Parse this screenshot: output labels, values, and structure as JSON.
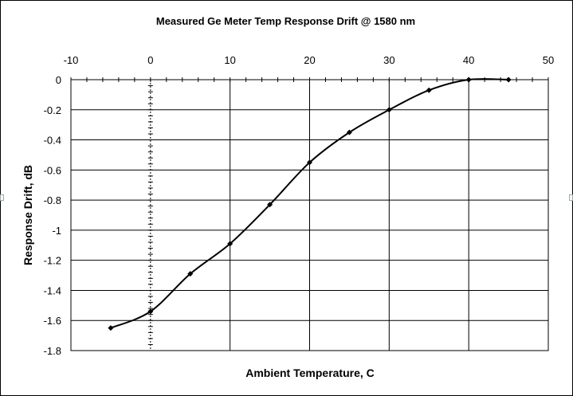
{
  "chart_data": {
    "type": "line",
    "title": "Measured Ge Meter Temp Response Drift @ 1580 nm",
    "xlabel": "Ambient Temperature, C",
    "ylabel": "Response Drift, dB",
    "xlim": [
      -10,
      50
    ],
    "ylim": [
      -1.8,
      0
    ],
    "x_ticks": [
      "-10",
      "0",
      "10",
      "20",
      "30",
      "40",
      "50"
    ],
    "y_ticks": [
      "0",
      "-0.2",
      "-0.4",
      "-0.6",
      "-0.8",
      "-1",
      "-1.2",
      "-1.4",
      "-1.6",
      "-1.8"
    ],
    "x_axis_position": "top",
    "grid": true,
    "legend": "none",
    "line_color": "#000000",
    "series": [
      {
        "x": [
          -5,
          0,
          5,
          10,
          15,
          20,
          25,
          30,
          35,
          40,
          45
        ],
        "values": [
          -1.65,
          -1.54,
          -1.29,
          -1.09,
          -0.83,
          -0.55,
          -0.35,
          -0.2,
          -0.07,
          0.0,
          0.0
        ]
      }
    ]
  }
}
